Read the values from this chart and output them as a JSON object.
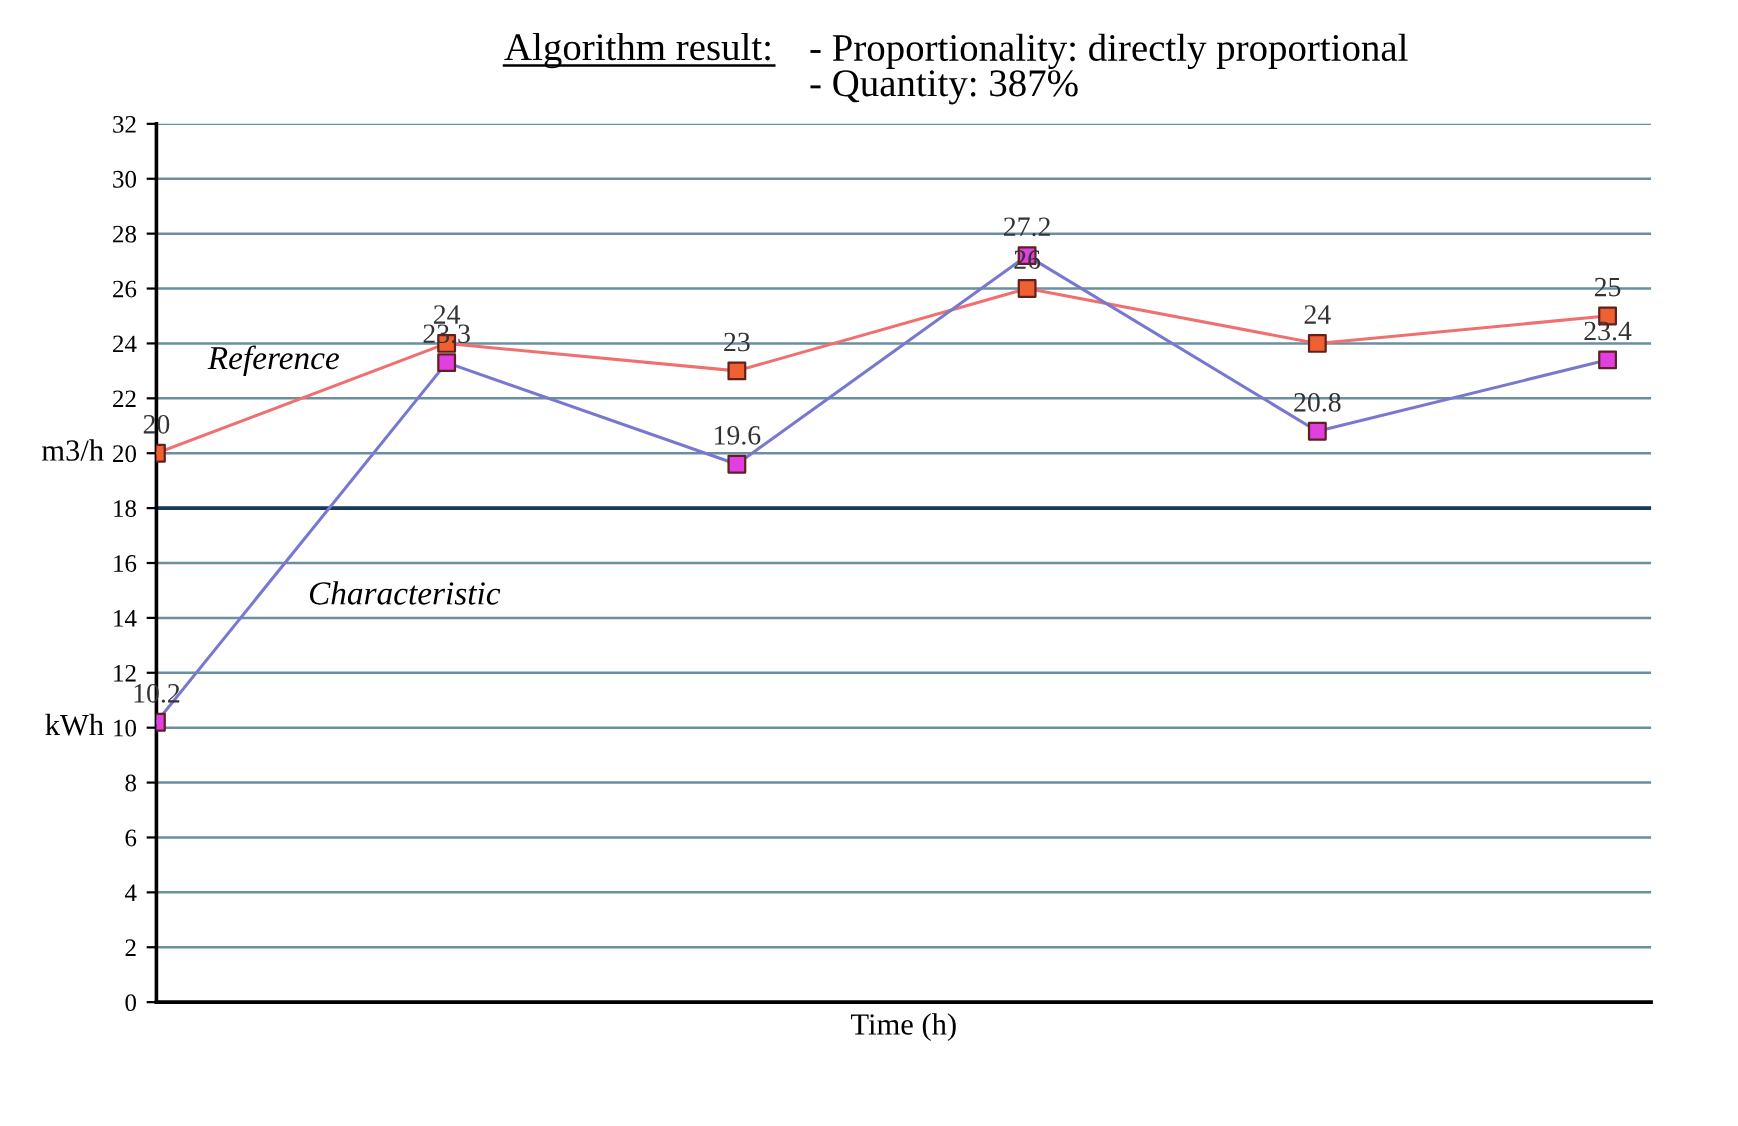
{
  "chart_data": {
    "type": "line",
    "title": "Algorithm result:",
    "subtitle": "- Proportionality: directly proportional\n- Quantity: 387%",
    "xlabel": "Time (h)",
    "ylabel": "m3/h",
    "annotations": [
      "kWh"
    ],
    "categories": [
      null,
      null,
      null,
      null,
      null,
      null
    ],
    "series": [
      {
        "name": "Reference",
        "color": "#f07070",
        "colors": [
          "#f06030",
          "#f06030",
          "#f06030",
          "#f06030",
          "#f06030",
          "#f06030"
        ],
        "values": [
          20,
          24,
          23,
          26,
          24,
          25
        ]
      },
      {
        "name": "Characteristic",
        "color": "#7878d0",
        "colors": [
          "#e040e0",
          "#e040e0",
          "#e040e0",
          "#e040e0",
          "#e040e0",
          "#e040e0"
        ],
        "values": [
          10.2,
          23.3,
          19.6,
          27.2,
          20.8,
          23.4
        ]
      }
    ],
    "ylim": [
      0,
      32
    ],
    "yticks": [
      0,
      2,
      4,
      6,
      8,
      10,
      12,
      14,
      16,
      18,
      20,
      22,
      24,
      26,
      28,
      30,
      32
    ],
    "ref_lines": [
      {
        "axis": "y",
        "value": 18,
        "color": "#1a3a5a"
      }
    ],
    "grid": "y",
    "legend": false,
    "marker": "square",
    "line_style": "solid",
    "data_labels": true
  }
}
